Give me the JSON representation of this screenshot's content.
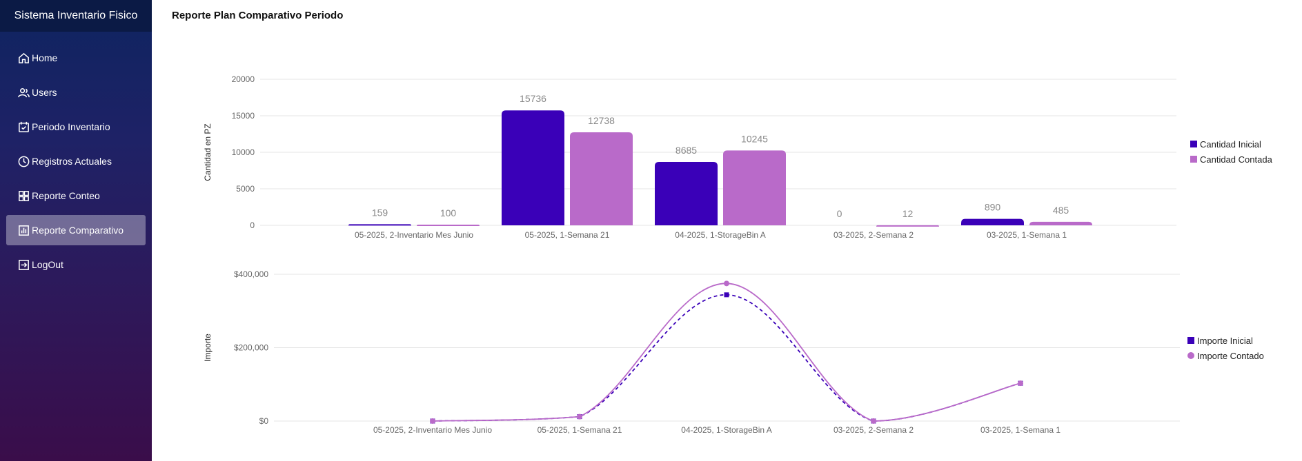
{
  "app": {
    "title": "Sistema Inventario Fisico"
  },
  "sidebar": {
    "items": [
      {
        "label": "Home",
        "icon": "home-icon",
        "active": false
      },
      {
        "label": "Users",
        "icon": "users-icon",
        "active": false
      },
      {
        "label": "Periodo Inventario",
        "icon": "calendar-check-icon",
        "active": false
      },
      {
        "label": "Registros Actuales",
        "icon": "clock-icon",
        "active": false
      },
      {
        "label": "Reporte Conteo",
        "icon": "grid-icon",
        "active": false
      },
      {
        "label": "Reporte Comparativo",
        "icon": "bar-chart-icon",
        "active": true
      },
      {
        "label": "LogOut",
        "icon": "logout-icon",
        "active": false
      }
    ]
  },
  "page": {
    "title": "Reporte Plan Comparativo Periodo"
  },
  "colors": {
    "inicial": "#3a00b8",
    "contada": "#b96ac9"
  },
  "chart_data": [
    {
      "type": "bar",
      "ylabel": "Cantidad en PZ",
      "ylim": [
        0,
        20000
      ],
      "yticks": [
        0,
        5000,
        10000,
        15000,
        20000
      ],
      "categories": [
        "05-2025, 2-Inventario Mes Junio",
        "05-2025, 1-Semana 21",
        "04-2025, 1-StorageBin A",
        "03-2025, 2-Semana 2",
        "03-2025, 1-Semana 1"
      ],
      "series": [
        {
          "name": "Cantidad Inicial",
          "values": [
            159,
            15736,
            8685,
            0,
            890
          ]
        },
        {
          "name": "Cantidad Contada",
          "values": [
            100,
            12738,
            10245,
            12,
            485
          ]
        }
      ],
      "legend": "right",
      "grid": true
    },
    {
      "type": "line",
      "ylabel": "Importe",
      "ylim": [
        0,
        400000
      ],
      "yticks": [
        "$0",
        "$200,000",
        "$400,000"
      ],
      "categories": [
        "05-2025, 2-Inventario Mes Junio",
        "05-2025, 1-Semana 21",
        "04-2025, 1-StorageBin A",
        "03-2025, 2-Semana 2",
        "03-2025, 1-Semana 1"
      ],
      "series": [
        {
          "name": "Importe Inicial",
          "values": [
            0,
            12000,
            344000,
            0,
            103000
          ]
        },
        {
          "name": "Importe Contado",
          "values": [
            0,
            12000,
            375000,
            0,
            103000
          ]
        }
      ],
      "legend": "right",
      "grid": true
    }
  ]
}
